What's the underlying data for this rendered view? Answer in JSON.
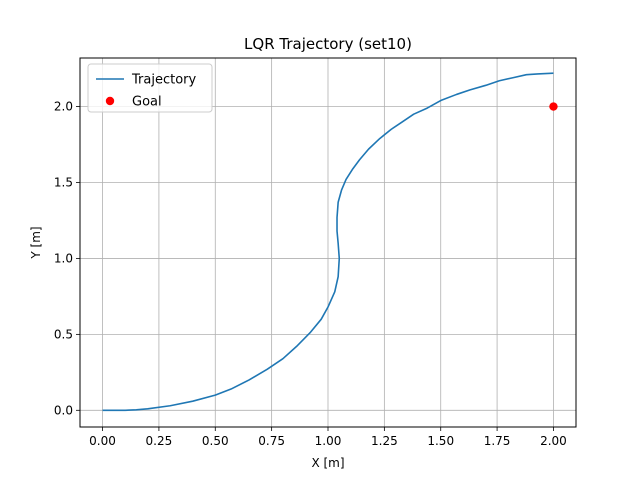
{
  "chart_data": {
    "type": "line",
    "title": "LQR Trajectory (set10)",
    "xlabel": "X [m]",
    "ylabel": "Y [m]",
    "xlim": [
      -0.1,
      2.1
    ],
    "ylim": [
      -0.11,
      2.32
    ],
    "xticks": [
      0.0,
      0.25,
      0.5,
      0.75,
      1.0,
      1.25,
      1.5,
      1.75,
      2.0
    ],
    "xtick_labels": [
      "0.00",
      "0.25",
      "0.50",
      "0.75",
      "1.00",
      "1.25",
      "1.50",
      "1.75",
      "2.00"
    ],
    "yticks": [
      0.0,
      0.5,
      1.0,
      1.5,
      2.0
    ],
    "ytick_labels": [
      "0.0",
      "0.5",
      "1.0",
      "1.5",
      "2.0"
    ],
    "grid": true,
    "legend_position": "top-left",
    "series": [
      {
        "name": "Trajectory",
        "kind": "line",
        "color": "#1f77b4",
        "x": [
          0.0,
          0.05,
          0.1,
          0.15,
          0.2,
          0.3,
          0.4,
          0.5,
          0.57,
          0.65,
          0.73,
          0.8,
          0.86,
          0.92,
          0.97,
          1.0,
          1.03,
          1.045,
          1.05,
          1.045,
          1.04,
          1.04,
          1.045,
          1.06,
          1.08,
          1.11,
          1.14,
          1.18,
          1.23,
          1.28,
          1.33,
          1.38,
          1.44,
          1.5,
          1.57,
          1.63,
          1.7,
          1.76,
          1.82,
          1.88,
          1.93,
          2.0
        ],
        "y": [
          0.0,
          0.0,
          0.0,
          0.003,
          0.01,
          0.03,
          0.06,
          0.1,
          0.14,
          0.2,
          0.27,
          0.34,
          0.42,
          0.51,
          0.6,
          0.68,
          0.78,
          0.88,
          1.0,
          1.1,
          1.18,
          1.27,
          1.37,
          1.45,
          1.52,
          1.59,
          1.65,
          1.72,
          1.79,
          1.85,
          1.9,
          1.95,
          1.99,
          2.04,
          2.08,
          2.11,
          2.14,
          2.17,
          2.19,
          2.21,
          2.215,
          2.22
        ]
      },
      {
        "name": "Goal",
        "kind": "marker",
        "color": "#ff0000",
        "x": [
          2.0
        ],
        "y": [
          2.0
        ]
      }
    ]
  }
}
